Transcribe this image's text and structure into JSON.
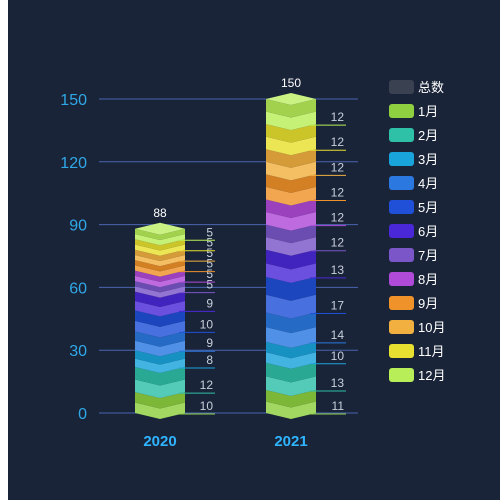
{
  "chart_data": {
    "type": "bar",
    "stacked": true,
    "categories": [
      "2020",
      "2021"
    ],
    "ylim": [
      0,
      150
    ],
    "yticks": [
      "0",
      "30",
      "60",
      "90",
      "120",
      "150"
    ],
    "totals": [
      88,
      150
    ],
    "legend_position": "right",
    "legend": [
      {
        "name": "总数",
        "color": "#3a4150"
      },
      {
        "name": "1月",
        "color": "#8ed03f"
      },
      {
        "name": "2月",
        "color": "#2fc0a8"
      },
      {
        "name": "3月",
        "color": "#1aa4dc"
      },
      {
        "name": "4月",
        "color": "#2a78e0"
      },
      {
        "name": "5月",
        "color": "#2050d8"
      },
      {
        "name": "6月",
        "color": "#4a28d8"
      },
      {
        "name": "7月",
        "color": "#7a56c8"
      },
      {
        "name": "8月",
        "color": "#b04ad8"
      },
      {
        "name": "9月",
        "color": "#f0922a"
      },
      {
        "name": "10月",
        "color": "#f2b040"
      },
      {
        "name": "11月",
        "color": "#e8e030"
      },
      {
        "name": "12月",
        "color": "#b8ee58"
      }
    ],
    "series": [
      {
        "name": "1月",
        "values": [
          10,
          11
        ]
      },
      {
        "name": "2月",
        "values": [
          12,
          13
        ]
      },
      {
        "name": "3月",
        "values": [
          8,
          10
        ]
      },
      {
        "name": "4月",
        "values": [
          9,
          14
        ]
      },
      {
        "name": "5月",
        "values": [
          10,
          17
        ]
      },
      {
        "name": "6月",
        "values": [
          9,
          13
        ]
      },
      {
        "name": "7月",
        "values": [
          5,
          12
        ]
      },
      {
        "name": "8月",
        "values": [
          5,
          12
        ]
      },
      {
        "name": "9月",
        "values": [
          5,
          12
        ]
      },
      {
        "name": "10月",
        "values": [
          5,
          12
        ]
      },
      {
        "name": "11月",
        "values": [
          5,
          12
        ]
      },
      {
        "name": "12月",
        "values": [
          5,
          12
        ]
      }
    ]
  }
}
